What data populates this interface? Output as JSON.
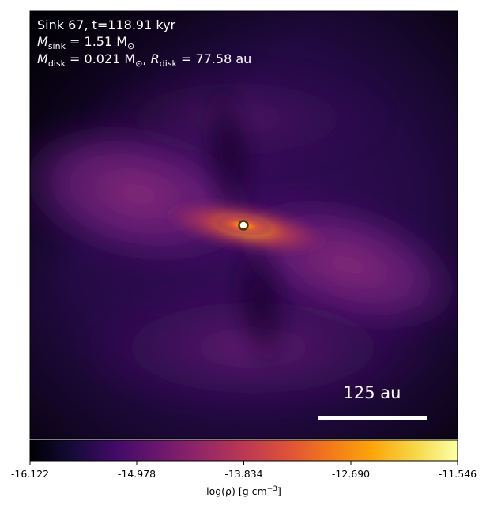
{
  "annotation": {
    "line1": "Sink 67, t=118.91 kyr",
    "sink_mass_label": "M",
    "sink_mass_sub": "sink",
    "sink_mass_value": " = 1.51 M",
    "sink_mass_unit_sub": "⊙",
    "disk_mass_label": "M",
    "disk_mass_sub": "disk",
    "disk_mass_value": " = 0.021 M",
    "disk_mass_unit_sub": "⊙",
    "disk_radius_sep": ", ",
    "disk_radius_label": "R",
    "disk_radius_sub": "disk",
    "disk_radius_value": " = 77.58 au"
  },
  "scalebar": {
    "label": "125 au"
  },
  "colorbar": {
    "label": "log(ρ) [g cm",
    "label_exp": "−3",
    "label_end": "]",
    "ticks": [
      "-16.122",
      "-14.978",
      "-13.834",
      "-12.690",
      "-11.546"
    ],
    "colormap": "inferno"
  },
  "colors": {
    "background_dark": "#0a0418",
    "lobe_purple": "#6a1d7a",
    "disk_orange": "#f98e09",
    "scalebar": "#ffffff",
    "sink_marker_fill": "#ffffff",
    "sink_marker_edge": "#4a3500"
  }
}
